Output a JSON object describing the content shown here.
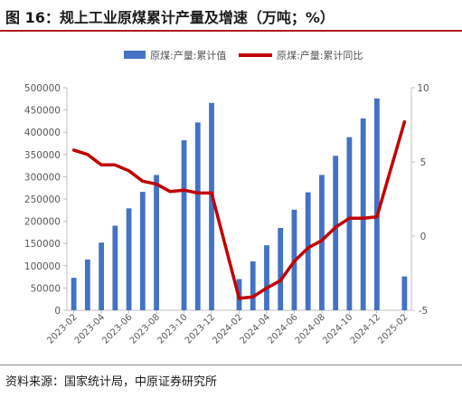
{
  "header": {
    "title": "图 16：规上工业原煤累计产量及增速（万吨；%）"
  },
  "footer": {
    "source": "资料来源：国家统计局，中原证券研究所"
  },
  "chart_data": {
    "type": "bar",
    "categories": [
      "2023-02",
      "2023-03",
      "2023-04",
      "2023-05",
      "2023-06",
      "2023-07",
      "2023-08",
      "2023-09",
      "2023-10",
      "2023-11",
      "2023-12",
      "2024-01",
      "2024-02",
      "2024-03",
      "2024-04",
      "2024-05",
      "2024-06",
      "2024-07",
      "2024-08",
      "2024-09",
      "2024-10",
      "2024-11",
      "2024-12",
      "2025-01",
      "2025-02"
    ],
    "x_tick_labels": [
      "2023-02",
      "2023-04",
      "2023-06",
      "2023-08",
      "2023-10",
      "2023-12",
      "2024-02",
      "2024-04",
      "2024-06",
      "2024-08",
      "2024-10",
      "2024-12",
      "2025-02"
    ],
    "series": [
      {
        "name": "原煤:产量:累计值",
        "type": "bar",
        "axis": "left",
        "color": "#4472c4",
        "values": [
          73000,
          114000,
          152000,
          190000,
          229000,
          266000,
          304000,
          null,
          382000,
          422000,
          466000,
          null,
          70000,
          110000,
          146000,
          185000,
          226000,
          265000,
          304000,
          347000,
          389000,
          431000,
          476000,
          null,
          76000
        ]
      },
      {
        "name": "原煤:产量:累计同比",
        "type": "line",
        "axis": "right",
        "color": "#c00000",
        "values": [
          5.8,
          5.5,
          4.8,
          4.8,
          4.4,
          3.7,
          3.5,
          3.0,
          3.1,
          2.9,
          2.9,
          null,
          -4.2,
          -4.1,
          -3.5,
          -3.0,
          -1.7,
          -0.8,
          -0.3,
          0.6,
          1.2,
          1.2,
          1.3,
          null,
          7.7
        ]
      }
    ],
    "y_left": {
      "min": 0,
      "max": 500000,
      "step": 50000,
      "tick_labels": [
        "0",
        "50000",
        "100000",
        "150000",
        "200000",
        "250000",
        "300000",
        "350000",
        "400000",
        "450000",
        "500000"
      ]
    },
    "y_right": {
      "min": -5,
      "max": 10,
      "step": 5,
      "tick_labels": [
        "-5",
        "0",
        "5",
        "10"
      ]
    },
    "legend_position": "top",
    "grid": false
  }
}
